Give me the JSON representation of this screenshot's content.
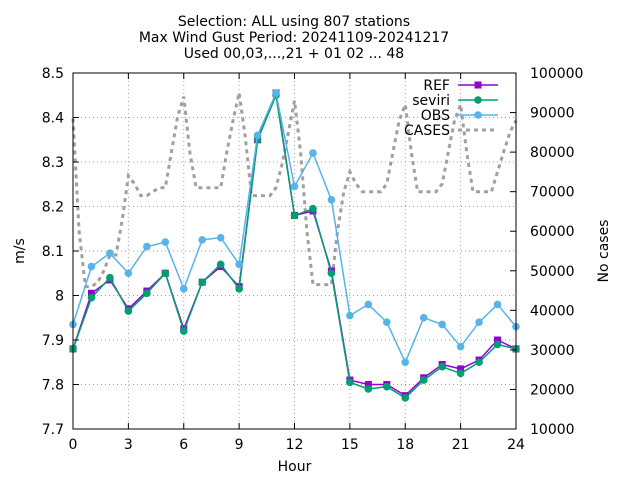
{
  "chart_data": {
    "type": "line",
    "title_lines": [
      "Selection: ALL using   807 stations",
      "Max Wind Gust   Period: 20241109-20241217",
      "Used 00,03,...,21 + 01 02 ... 48"
    ],
    "xlabel": "Hour",
    "ylabel": "m/s",
    "y2label": "No cases",
    "xlim": [
      0,
      24
    ],
    "ylim": [
      7.7,
      8.5
    ],
    "y2lim": [
      10000,
      100000
    ],
    "x_ticks": [
      0,
      3,
      6,
      9,
      12,
      15,
      18,
      21,
      24
    ],
    "y_ticks": [
      7.7,
      7.8,
      7.9,
      8,
      8.1,
      8.2,
      8.3,
      8.4,
      8.5
    ],
    "y_tick_labels": [
      "7.7",
      "7.8",
      "7.9",
      "8",
      "8.1",
      "8.2",
      "8.3",
      "8.4",
      "8.5"
    ],
    "y2_ticks": [
      10000,
      20000,
      30000,
      40000,
      50000,
      60000,
      70000,
      80000,
      90000,
      100000
    ],
    "grid": true,
    "legend_position": "top-right",
    "x": [
      0,
      1,
      2,
      3,
      4,
      5,
      6,
      7,
      8,
      9,
      10,
      11,
      12,
      13,
      14,
      15,
      16,
      17,
      18,
      19,
      20,
      21,
      22,
      23,
      24
    ],
    "series": [
      {
        "name": "REF",
        "color": "#9400d3",
        "marker": "square",
        "axis": "y",
        "values": [
          7.88,
          8.005,
          8.035,
          7.97,
          8.01,
          8.05,
          7.925,
          8.03,
          8.065,
          8.02,
          8.35,
          8.455,
          8.18,
          8.19,
          8.055,
          7.81,
          7.8,
          7.8,
          7.775,
          7.815,
          7.845,
          7.835,
          7.855,
          7.9,
          7.88
        ]
      },
      {
        "name": "seviri",
        "color": "#009e73",
        "marker": "circle",
        "axis": "y",
        "values": [
          7.88,
          7.995,
          8.04,
          7.965,
          8.005,
          8.05,
          7.92,
          8.03,
          8.07,
          8.015,
          8.35,
          8.45,
          8.18,
          8.195,
          8.05,
          7.805,
          7.79,
          7.795,
          7.77,
          7.81,
          7.84,
          7.825,
          7.85,
          7.89,
          7.88
        ]
      },
      {
        "name": "OBS",
        "color": "#56b4e9",
        "marker": "circle",
        "axis": "y",
        "values": [
          7.935,
          8.065,
          8.095,
          8.05,
          8.11,
          8.12,
          8.015,
          8.125,
          8.13,
          8.07,
          8.36,
          8.455,
          8.245,
          8.32,
          8.215,
          7.955,
          7.98,
          7.94,
          7.85,
          7.95,
          7.935,
          7.885,
          7.94,
          7.98,
          7.93
        ]
      },
      {
        "name": "CASES",
        "color": "#a0a0a0",
        "marker": "none",
        "dashed": true,
        "axis": "y2",
        "x": [
          0,
          0.33,
          0.67,
          1,
          1.33,
          1.67,
          2,
          2.33,
          2.67,
          3,
          3.33,
          3.67,
          4,
          4.33,
          4.67,
          5,
          5.33,
          5.67,
          6,
          6.33,
          6.67,
          7,
          7.33,
          7.67,
          8,
          8.33,
          8.67,
          9,
          9.33,
          9.67,
          10,
          10.33,
          10.67,
          11,
          11.33,
          11.67,
          12,
          12.33,
          12.67,
          13,
          13.33,
          13.67,
          14,
          14.33,
          14.67,
          15,
          15.33,
          15.67,
          16,
          16.33,
          16.67,
          17,
          17.33,
          17.67,
          18,
          18.33,
          18.67,
          19,
          19.33,
          19.67,
          20,
          20.33,
          20.67,
          21,
          21.33,
          21.67,
          22,
          22.33,
          22.67,
          23,
          23.33,
          23.67,
          24
        ],
        "values": [
          88500,
          60000,
          46000,
          46000,
          47000,
          50000,
          54000,
          54000,
          63000,
          74000,
          72000,
          69000,
          69000,
          70000,
          71000,
          71000,
          80000,
          89000,
          94000,
          80000,
          71000,
          71000,
          71000,
          71000,
          71000,
          80000,
          88000,
          95000,
          84000,
          69000,
          69000,
          69000,
          69000,
          71000,
          77000,
          85000,
          93000,
          80000,
          60000,
          46500,
          46500,
          46500,
          46500,
          60000,
          70000,
          75000,
          72000,
          70000,
          70000,
          70000,
          70000,
          72000,
          80000,
          88000,
          92000,
          80000,
          70000,
          70000,
          70000,
          70000,
          72000,
          80000,
          88000,
          92000,
          80000,
          70000,
          70000,
          70000,
          70000,
          75000,
          80000,
          85000,
          88000
        ]
      }
    ]
  }
}
